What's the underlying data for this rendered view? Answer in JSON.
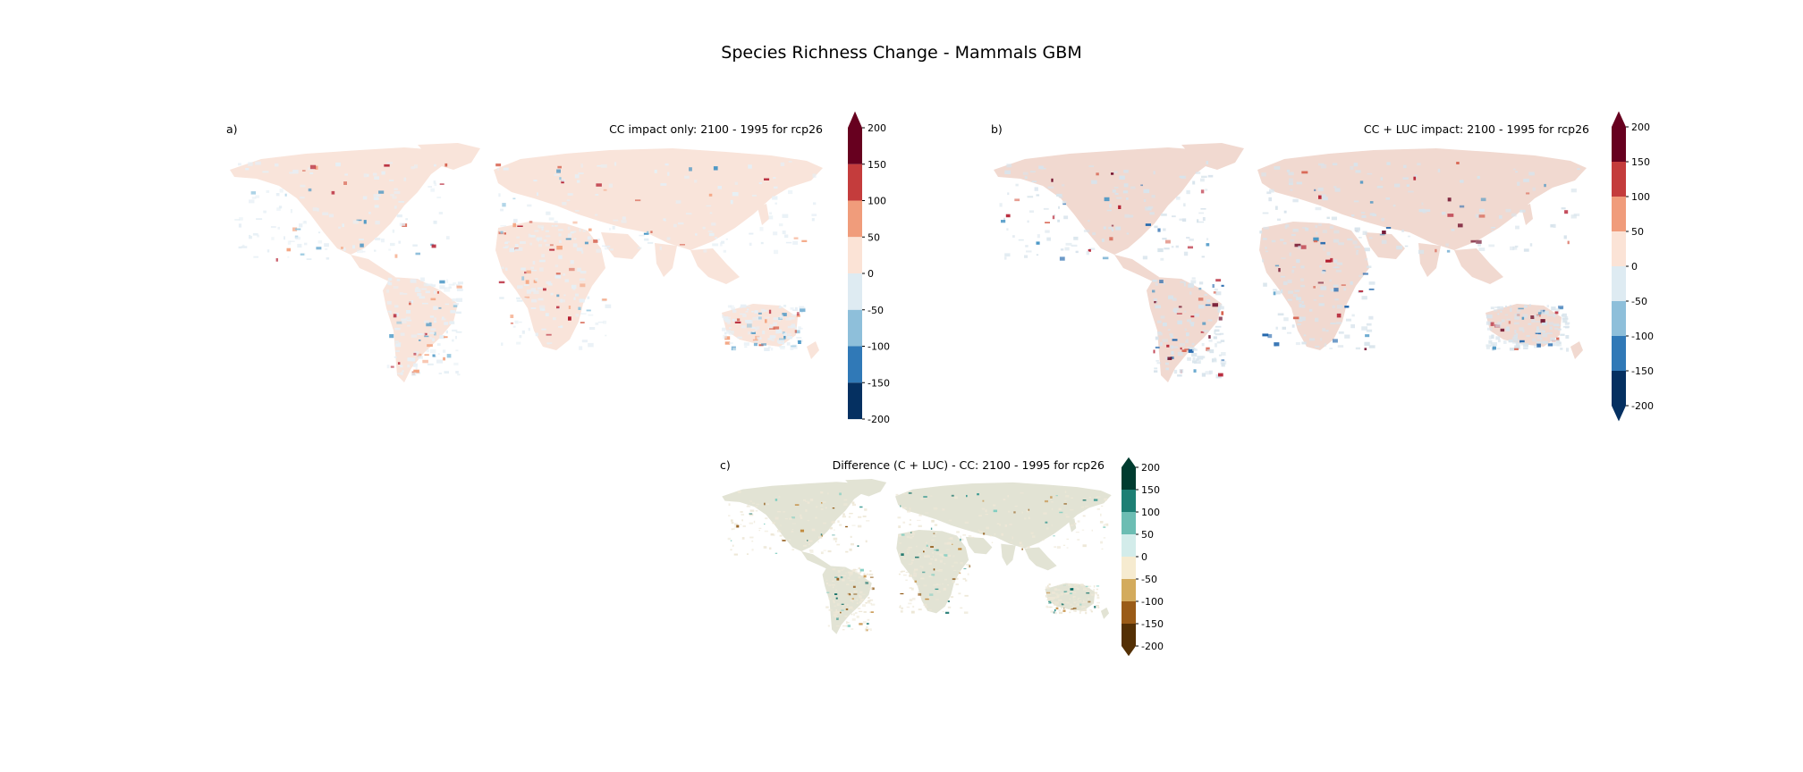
{
  "figure": {
    "title": "Species Richness Change - Mammals GBM"
  },
  "panels": [
    {
      "label": "a)",
      "title": "CC impact only: 2100 - 1995 for rcp26",
      "colorbar": {
        "ticks": [
          "200",
          "150",
          "100",
          "50",
          "0",
          "-50",
          "-100",
          "-150",
          "-200"
        ],
        "colors": [
          "#67001f",
          "#c43c3c",
          "#f09c7b",
          "#fbe3d6",
          "#deebf2",
          "#8ebfda",
          "#3079b7",
          "#053061"
        ],
        "extend_top": true,
        "extend_bottom": false
      },
      "map_palette": {
        "base": "#f9e4da",
        "secondary": "#e6eff5",
        "highlights": [
          "#f4a582",
          "#d6604d",
          "#92c5de",
          "#4393c3",
          "#b2182b"
        ]
      }
    },
    {
      "label": "b)",
      "title": "CC + LUC impact: 2100 - 1995 for rcp26",
      "colorbar": {
        "ticks": [
          "200",
          "150",
          "100",
          "50",
          "0",
          "-50",
          "-100",
          "-150",
          "-200"
        ],
        "colors": [
          "#67001f",
          "#c43c3c",
          "#f09c7b",
          "#fbe3d6",
          "#deebf2",
          "#8ebfda",
          "#3079b7",
          "#053061"
        ],
        "extend_top": true,
        "extend_bottom": true
      },
      "map_palette": {
        "base": "#f1d9d0",
        "secondary": "#d8e4ec",
        "highlights": [
          "#b2182b",
          "#67001f",
          "#d6604d",
          "#2166ac",
          "#4393c3"
        ]
      }
    },
    {
      "label": "c)",
      "title": "Difference (C + LUC) - CC: 2100 - 1995 for rcp26",
      "colorbar": {
        "ticks": [
          "200",
          "150",
          "100",
          "50",
          "0",
          "-50",
          "-100",
          "-150",
          "-200"
        ],
        "colors": [
          "#003c30",
          "#1d7f74",
          "#6cbdb3",
          "#d3ecea",
          "#f6ebd0",
          "#d3ab5d",
          "#9a5b17",
          "#543005"
        ],
        "extend_top": true,
        "extend_bottom": true
      },
      "map_palette": {
        "base": "#e2e3d4",
        "secondary": "#ede7d6",
        "highlights": [
          "#35978f",
          "#01665e",
          "#80cdc1",
          "#bf812d",
          "#8c510a"
        ]
      }
    }
  ]
}
